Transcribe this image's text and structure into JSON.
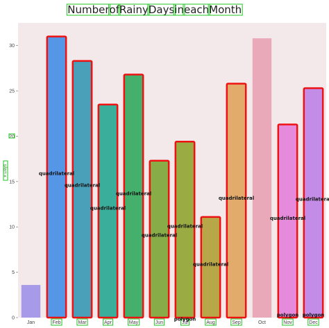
{
  "chart_data": {
    "type": "bar",
    "title": "Number of Rainy Days in each Month",
    "title_words": [
      "Number",
      "of",
      "Rainy",
      "Days",
      "in",
      "each",
      "Month"
    ],
    "xlabel": "",
    "ylabel": "# Days",
    "ylim": [
      0,
      32.5
    ],
    "yticks": [
      0,
      5,
      10,
      15,
      20,
      25,
      30
    ],
    "grid": false,
    "background": "#f3e8ea",
    "categories": [
      "Jan",
      "Feb",
      "Mar",
      "Apr",
      "May",
      "Jun",
      "Jul",
      "Aug",
      "Sep",
      "Oct",
      "Nov",
      "Dec"
    ],
    "values": [
      3.6,
      31,
      28.3,
      23.5,
      26.8,
      17.3,
      19.4,
      11.1,
      25.8,
      30.8,
      21.3,
      25.3
    ],
    "colors": [
      "#a79ae8",
      "#5596e6",
      "#4aa0b8",
      "#3aae9a",
      "#45b06b",
      "#87ac48",
      "#9aab43",
      "#b8a748",
      "#e2ab6b",
      "#eaa9b8",
      "#e68bdc",
      "#c38ce6"
    ],
    "highlighted": [
      false,
      true,
      true,
      true,
      true,
      true,
      true,
      true,
      true,
      false,
      true,
      true
    ],
    "highlight_color": "#ee1111",
    "annotations": [
      {
        "text": "quadrilateral",
        "category": "Feb",
        "y": 15.7
      },
      {
        "text": "quadrilateral",
        "category": "Mar",
        "y": 14.4
      },
      {
        "text": "quadrilateral",
        "category": "Apr",
        "y": 11.9
      },
      {
        "text": "quadrilateral",
        "category": "May",
        "y": 13.5
      },
      {
        "text": "quadrilateral",
        "category": "Jun",
        "y": 8.9
      },
      {
        "text": "quadrilateral",
        "category": "Jul",
        "y": 9.9
      },
      {
        "text": "quadrilateral",
        "category": "Aug",
        "y": 5.7
      },
      {
        "text": "quadrilateral",
        "category": "Sep",
        "y": 13.0
      },
      {
        "text": "quadrilateral",
        "category": "Nov",
        "y": 10.8
      },
      {
        "text": "quadrilateral",
        "category": "Dec",
        "y": 12.9
      },
      {
        "text": "polygon",
        "category": "Jul",
        "y": -0.35
      },
      {
        "text": "polygon",
        "category": "Nov",
        "y": 0.1
      },
      {
        "text": "polygon",
        "category": "Dec",
        "y": 0.1
      }
    ],
    "boxed_words_color": "#22c522"
  }
}
